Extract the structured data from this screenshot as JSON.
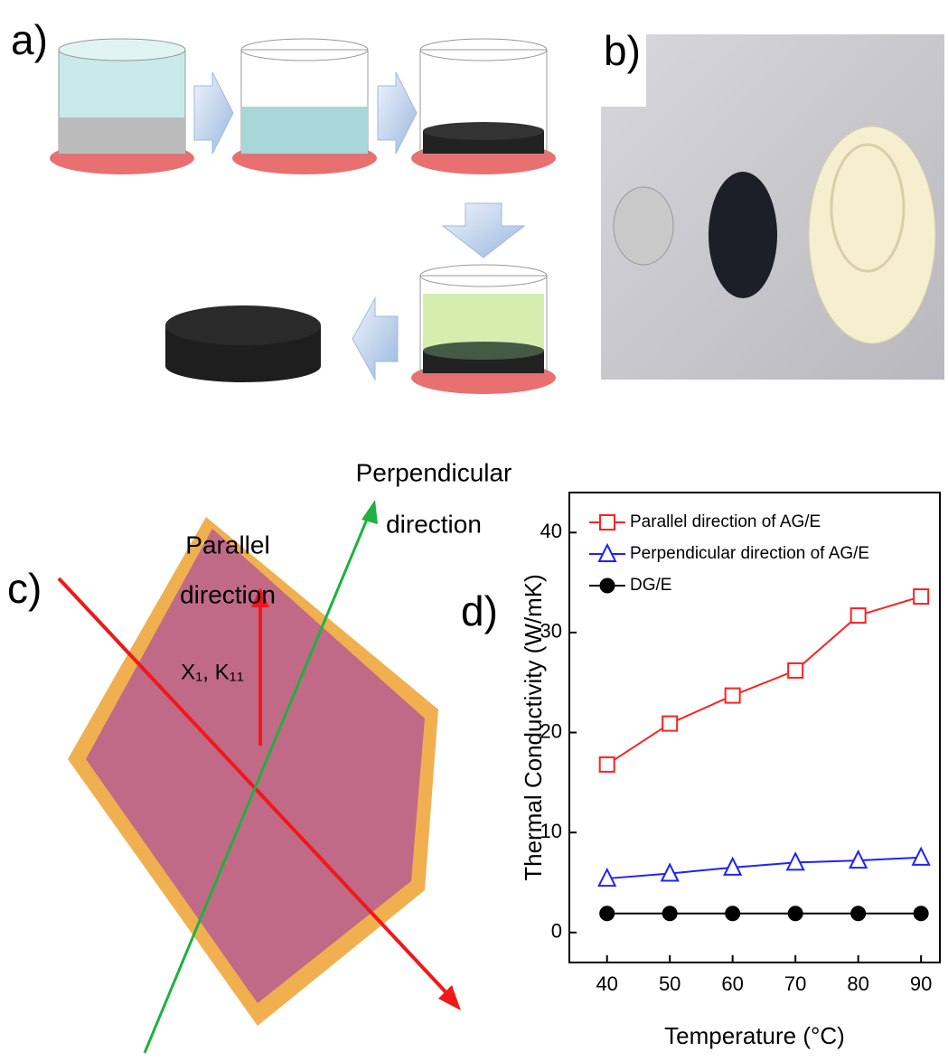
{
  "panels": {
    "a": {
      "label": "a)"
    },
    "b": {
      "label": "b)"
    },
    "c": {
      "label": "c)",
      "perpendicular": "Perpendicular",
      "perpendicular_2": "direction",
      "parallel": "Parallel",
      "parallel_2": "direction",
      "axes": "X₁, K₁₁"
    },
    "d": {
      "label": "d)"
    }
  },
  "chart_data": {
    "type": "line",
    "x_label": "Temperature (°C)",
    "y_label": "Thermal Conductivity (W/mK)",
    "x": [
      40,
      50,
      60,
      70,
      80,
      90
    ],
    "series": [
      {
        "name": "Parallel direction of AG/E",
        "color": "#ff2020",
        "marker": "square",
        "values": [
          16.8,
          20.9,
          23.7,
          26.2,
          31.7,
          33.6
        ]
      },
      {
        "name": "Perpendicular direction of AG/E",
        "color": "#2020ff",
        "marker": "triangle",
        "values": [
          5.4,
          5.9,
          6.5,
          7.0,
          7.2,
          7.5
        ]
      },
      {
        "name": "DG/E",
        "color": "#000000",
        "marker": "circle",
        "values": [
          1.9,
          1.9,
          1.9,
          1.9,
          1.9,
          1.9
        ]
      }
    ],
    "xlim": [
      34,
      93
    ],
    "ylim": [
      -3,
      44
    ],
    "xticks": [
      40,
      50,
      60,
      70,
      80,
      90
    ],
    "yticks": [
      0,
      10,
      20,
      30,
      40
    ]
  }
}
